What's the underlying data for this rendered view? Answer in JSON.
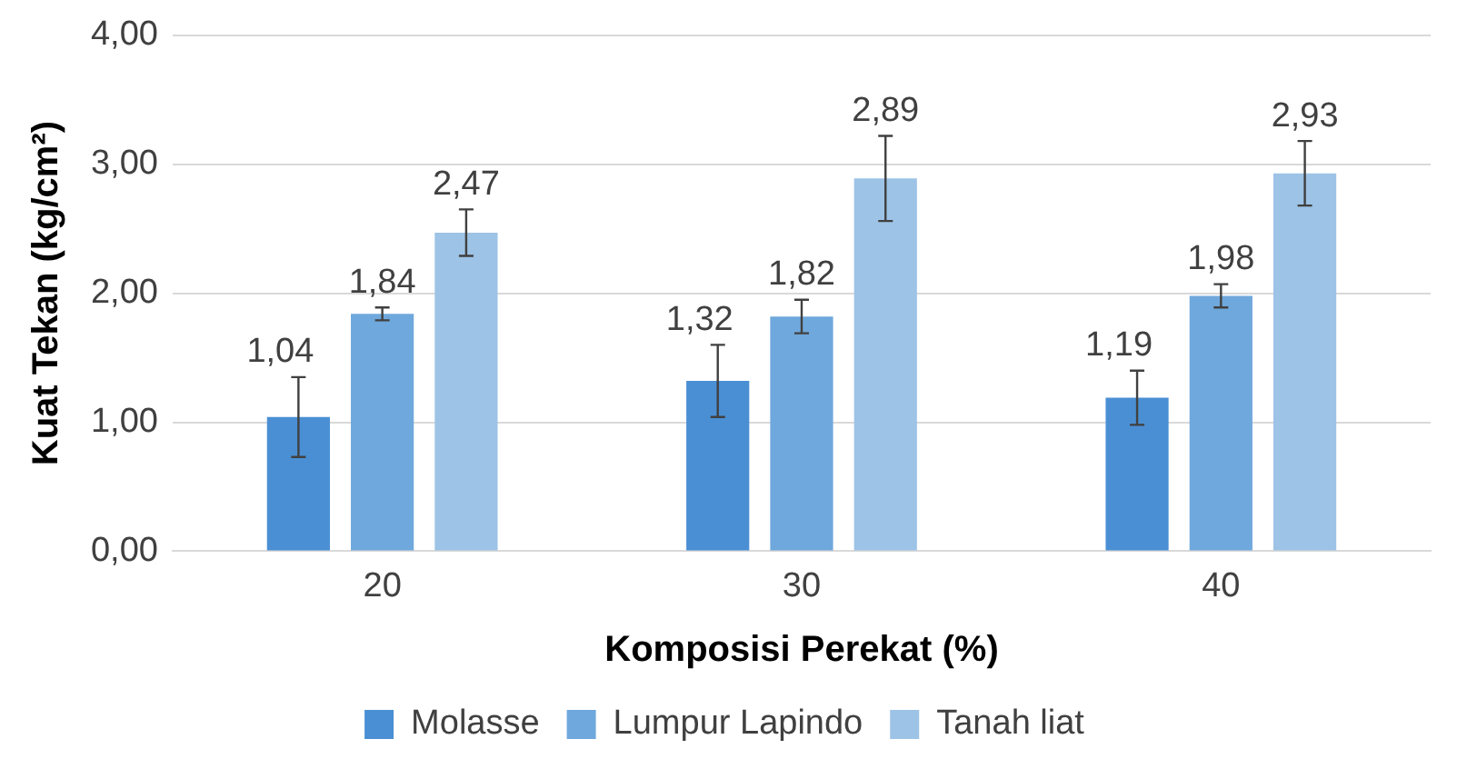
{
  "chart_data": {
    "type": "bar",
    "xlabel": "Komposisi Perekat (%)",
    "ylabel": "Kuat Tekan (kg/cm²)",
    "categories": [
      "20",
      "30",
      "40"
    ],
    "series": [
      {
        "name": "Molasse",
        "color": "#4a8fd4",
        "values": [
          1.04,
          1.32,
          1.19
        ],
        "value_labels": [
          "1,04",
          "1,32",
          "1,19"
        ],
        "errors": [
          0.31,
          0.28,
          0.21
        ]
      },
      {
        "name": "Lumpur Lapindo",
        "color": "#6fa8dc",
        "values": [
          1.84,
          1.82,
          1.98
        ],
        "value_labels": [
          "1,84",
          "1,82",
          "1,98"
        ],
        "errors": [
          0.05,
          0.13,
          0.09
        ]
      },
      {
        "name": "Tanah liat",
        "color": "#9dc3e6",
        "values": [
          2.47,
          2.89,
          2.93
        ],
        "value_labels": [
          "2,47",
          "2,89",
          "2,93"
        ],
        "errors": [
          0.18,
          0.33,
          0.25
        ]
      }
    ],
    "ylim": [
      0,
      4
    ],
    "yticks": [
      {
        "value": 0,
        "label": "0,00"
      },
      {
        "value": 1,
        "label": "1,00"
      },
      {
        "value": 2,
        "label": "2,00"
      },
      {
        "value": 3,
        "label": "3,00"
      },
      {
        "value": 4,
        "label": "4,00"
      }
    ],
    "grid": "y",
    "legend": "bottom"
  }
}
